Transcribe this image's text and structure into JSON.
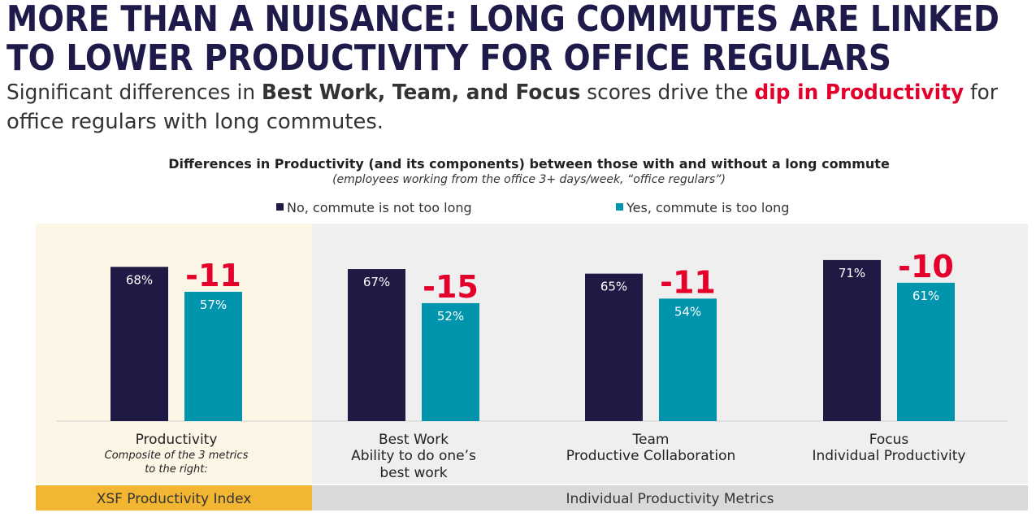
{
  "header": {
    "title_lines": [
      "MORE THAN A NUISANCE: LONG COMMUTES ARE LINKED",
      "TO LOWER PRODUCTIVITY FOR OFFICE REGULARS"
    ],
    "subtitle_lines": [
      [
        {
          "text": "Significant differences in ",
          "style": "normal"
        },
        {
          "text": "Best Work, Team, and Focus",
          "style": "bold"
        },
        {
          "text": " scores drive the ",
          "style": "normal"
        },
        {
          "text": "dip in Productivity",
          "style": "highlight"
        },
        {
          "text": " for",
          "style": "normal"
        }
      ],
      [
        {
          "text": "office regulars with long commutes.",
          "style": "normal"
        }
      ]
    ]
  },
  "chart_data": {
    "type": "bar",
    "title": "Differences in Productivity (and its components) between those with and without a long commute",
    "subtitle": "(employees working from the office 3+ days/week, “office regulars”)",
    "categories": [
      "Productivity",
      "Best Work",
      "Team",
      "Focus"
    ],
    "category_sublabels": [
      [
        "Composite of the 3 metrics",
        "to the right:"
      ],
      [
        "Ability to do one’s",
        "best work"
      ],
      [
        "Productive Collaboration"
      ],
      [
        "Individual Productivity"
      ]
    ],
    "series": [
      {
        "name": "No, commute is not too long",
        "color": "#1e1a44",
        "values": [
          68,
          67,
          65,
          71
        ],
        "value_labels": [
          "68%",
          "67%",
          "65%",
          "71%"
        ]
      },
      {
        "name": "Yes, commute is too long",
        "color": "#0095ad",
        "values": [
          57,
          52,
          54,
          61
        ],
        "value_labels": [
          "57%",
          "52%",
          "54%",
          "61%"
        ]
      }
    ],
    "differences": [
      -11,
      -15,
      -11,
      -10
    ],
    "difference_color": "#e4002b",
    "groups": [
      {
        "label": "XSF Productivity Index",
        "color": "#f2b632",
        "background": "#fdf5e6"
      },
      {
        "label": "Individual Productivity Metrics",
        "color": "#d9d9d9",
        "background": "#efefef"
      }
    ]
  }
}
